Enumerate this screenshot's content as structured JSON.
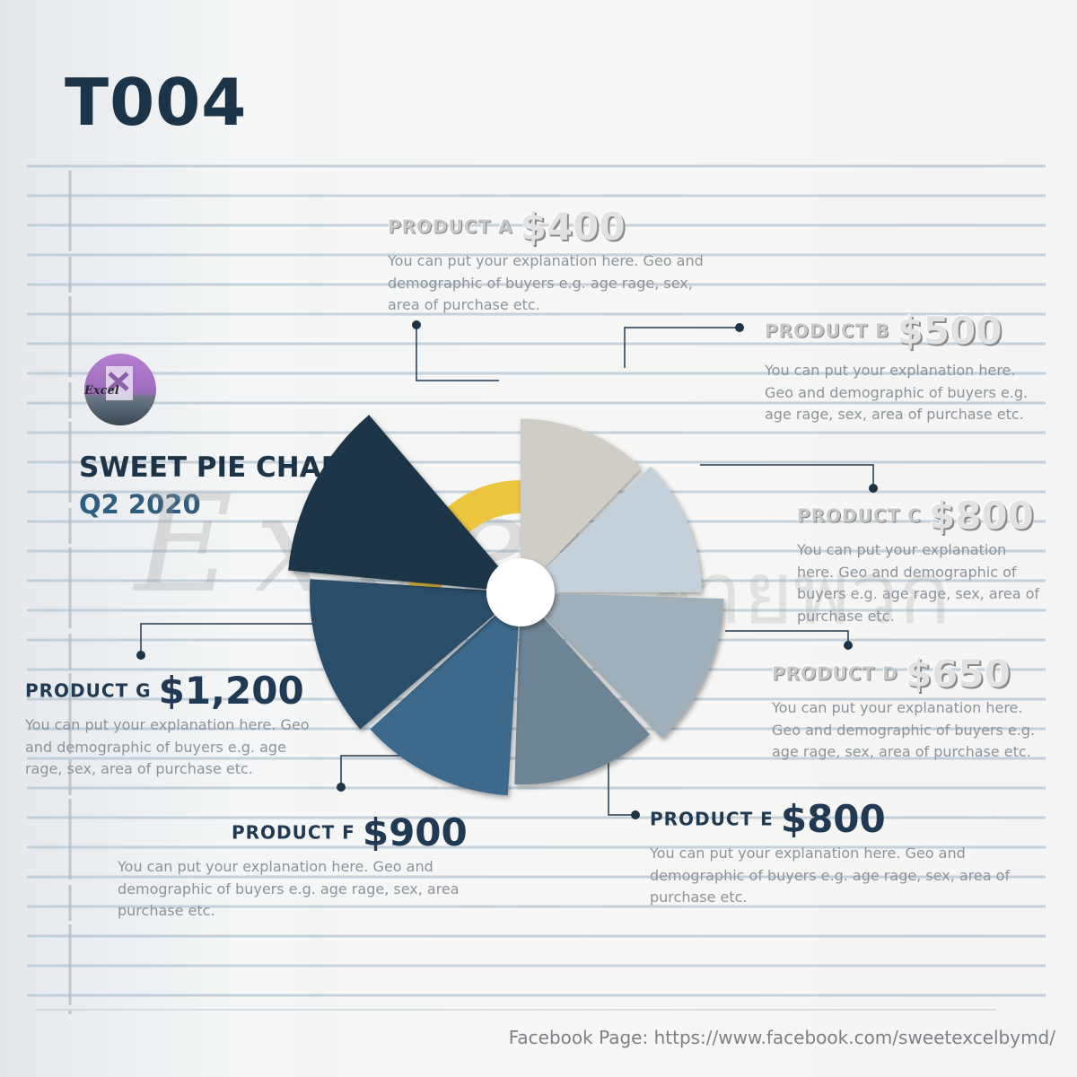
{
  "code": "T004",
  "logo_text": "Excel",
  "chart_title": "SWEET PIE CHART",
  "chart_subtitle": "Q2 2020",
  "watermark": {
    "left": "Excel",
    "right": "ล่ายพวก"
  },
  "footer": "Facebook Page: https://www.facebook.com/sweetexcelbymd/",
  "colors": {
    "product_a": "#d0ccc6",
    "product_b": "#c4d0da",
    "product_c": "#9fb0bb",
    "product_d": "#6e8596",
    "product_e": "#3c6a8c",
    "product_f": "#2b4e6a",
    "product_g": "#1d3446",
    "highlight": "#ecc73e",
    "title": "#1c3448"
  },
  "chart_data": {
    "type": "pie",
    "categories": [
      "PRODUCT A",
      "PRODUCT B",
      "PRODUCT C",
      "PRODUCT D",
      "PRODUCT E",
      "PRODUCT F",
      "PRODUCT G"
    ],
    "values": [
      400,
      500,
      800,
      650,
      800,
      900,
      1200
    ],
    "value_labels": [
      "$400",
      "$500",
      "$800",
      "$650",
      "$800",
      "$900",
      "$1,200"
    ],
    "descriptions": [
      [
        "You can put your explanation here. Geo and",
        "demographic of buyers e.g. age rage, sex,",
        "area of purchase etc."
      ],
      [
        "You can put your explanation here.",
        "Geo and demographic of buyers e.g.",
        "age rage, sex, area of purchase etc."
      ],
      [
        "You can put your explanation",
        "here. Geo and demographic of",
        "buyers e.g. age rage, sex, area of",
        "purchase etc."
      ],
      [
        "You can put your explanation here.",
        "Geo and demographic of buyers e.g.",
        "age rage, sex, area of purchase etc."
      ],
      [
        "You can put your explanation here. Geo and",
        "demographic of buyers e.g. age rage, sex, area of",
        "purchase etc."
      ],
      [
        "You can put your explanation here. Geo and",
        "demographic of buyers e.g. age rage, sex, area",
        "purchase etc."
      ],
      [
        "You can put your explanation here. Geo",
        "and demographic of buyers e.g. age",
        "rage, sex, area of purchase etc."
      ]
    ]
  }
}
